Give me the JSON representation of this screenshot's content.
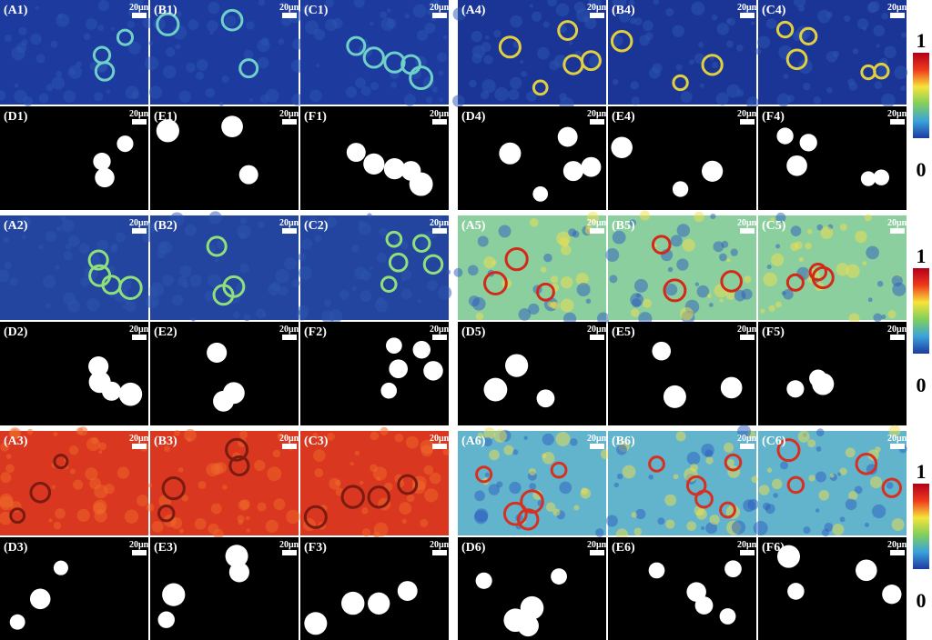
{
  "groups": [
    {
      "top": [
        "(A1)",
        "(B1)",
        "(C1)"
      ],
      "bottom": [
        "(D1)",
        "(E1)",
        "(F1)"
      ]
    },
    {
      "top": [
        "(A2)",
        "(B2)",
        "(C2)"
      ],
      "bottom": [
        "(D2)",
        "(E2)",
        "(F2)"
      ]
    },
    {
      "top": [
        "(A3)",
        "(B3)",
        "(C3)"
      ],
      "bottom": [
        "(D3)",
        "(E3)",
        "(F3)"
      ]
    },
    {
      "top": [
        "(A4)",
        "(B4)",
        "(C4)"
      ],
      "bottom": [
        "(D4)",
        "(E4)",
        "(F4)"
      ]
    },
    {
      "top": [
        "(A5)",
        "(B5)",
        "(C5)"
      ],
      "bottom": [
        "(D5)",
        "(E5)",
        "(F5)"
      ]
    },
    {
      "top": [
        "(A6)",
        "(B6)",
        "(C6)"
      ],
      "bottom": [
        "(D6)",
        "(E6)",
        "(F6)"
      ]
    }
  ],
  "scale_bar_label": "20μm",
  "colorbars": [
    {
      "max": "1",
      "min": "0"
    },
    {
      "max": "1",
      "min": "0"
    },
    {
      "max": "1",
      "min": "0"
    }
  ]
}
